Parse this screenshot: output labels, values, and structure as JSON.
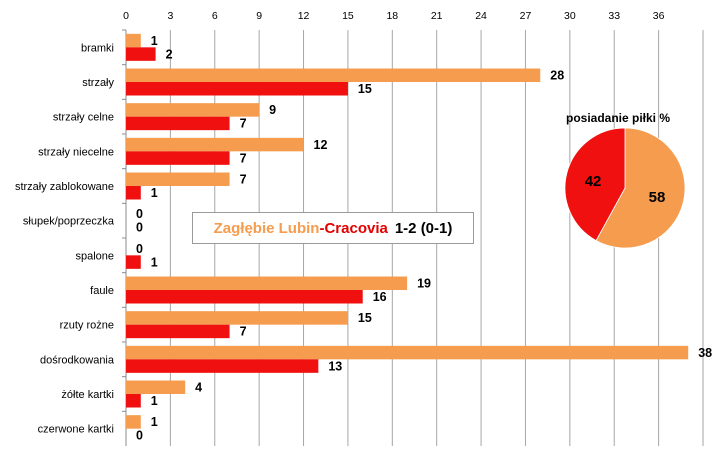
{
  "chart_data": [
    {
      "type": "bar",
      "orientation": "horizontal",
      "categories": [
        "bramki",
        "strzały",
        "strzały celne",
        "strzały niecelne",
        "strzały zablokowane",
        "słupek/poprzeczka",
        "spalone",
        "faule",
        "rzuty rożne",
        "dośrodkowania",
        "żółte kartki",
        "czerwone kartki"
      ],
      "series": [
        {
          "values": [
            1,
            28,
            9,
            12,
            7,
            0,
            0,
            19,
            15,
            38,
            4,
            1
          ],
          "color": "#f59c4e"
        },
        {
          "values": [
            2,
            15,
            7,
            7,
            1,
            0,
            1,
            16,
            7,
            13,
            1,
            0
          ],
          "color": "#f01010"
        }
      ],
      "xlim": [
        0,
        39
      ],
      "xticks": [
        "0",
        "3",
        "6",
        "9",
        "12",
        "15",
        "18",
        "21",
        "24",
        "27",
        "30",
        "33",
        "36"
      ],
      "xtick_values": [
        0,
        3,
        6,
        9,
        12,
        15,
        18,
        21,
        24,
        27,
        30,
        33,
        36
      ],
      "x_axis_position": "top",
      "grid": true,
      "data_labels": true
    },
    {
      "type": "pie",
      "title": "posiadanie piłki %",
      "slices": [
        {
          "value": 58,
          "label": "58",
          "color": "#f59c4e"
        },
        {
          "value": 42,
          "label": "42",
          "color": "#f01010"
        }
      ]
    }
  ],
  "match": {
    "home": "Zagłębie Lubin",
    "separator": " - ",
    "away": "Cracovia",
    "score": "1-2 (0-1)"
  },
  "colors": {
    "home": "#f59c4e",
    "away": "#f01010",
    "grid": "#a6a6a6"
  }
}
